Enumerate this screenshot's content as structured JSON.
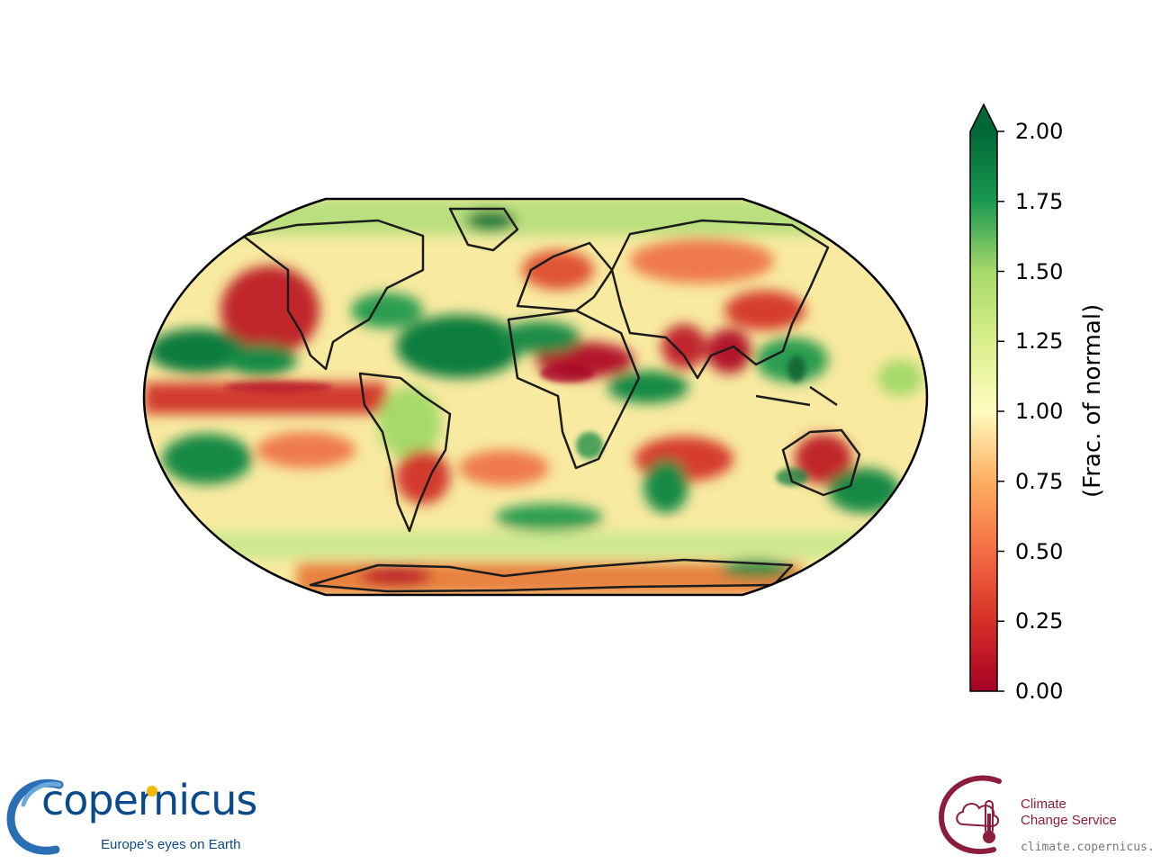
{
  "map": {
    "projection": "robinson",
    "variable_label": "(Frac. of normal)",
    "colormap": "RdYlGn",
    "colors": {
      "low": "#b3162a",
      "mid_low": "#f46d43",
      "mid": "#fefcbe",
      "mid_high": "#74c464",
      "high": "#0b6b36",
      "coastline": "#1c1c1c"
    },
    "colorbar": {
      "min": 0.0,
      "max": 2.0,
      "extend": "max",
      "ticks": [
        "0.00",
        "0.25",
        "0.50",
        "0.75",
        "1.00",
        "1.25",
        "1.50",
        "1.75",
        "2.00"
      ]
    }
  },
  "logos": {
    "copernicus": {
      "name": "copernicus",
      "tagline": "Europe's eyes on Earth",
      "color": "#0a4a8c"
    },
    "c3s": {
      "line1": "Climate",
      "line2": "Change Service",
      "url": "climate.copernicus.eu",
      "color": "#8c1d3c"
    }
  }
}
